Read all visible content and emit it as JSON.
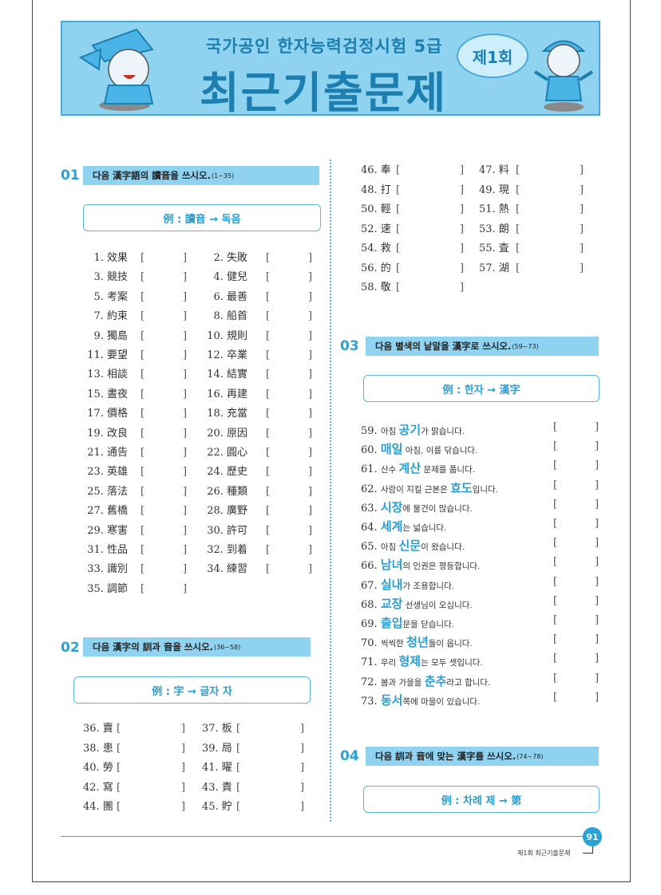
{
  "banner": {
    "subtitle": "국가공인 한자능력검정시험 5급",
    "title": "최근기출문제",
    "round": "제1회"
  },
  "colors": {
    "accent": "#2aa2d6",
    "bar": "#8fd3f1",
    "title": "#1c7fb0"
  },
  "sections": [
    {
      "num": "01",
      "instruction": "다음 漢字語의 讀音을 쓰시오.",
      "range": "(1~35)",
      "example": "例 : 讀音 → 독음"
    },
    {
      "num": "02",
      "instruction": "다음 漢字의 訓과 音을 쓰시오.",
      "range": "(36~58)",
      "example": "例 : 字 → 글자 자"
    },
    {
      "num": "03",
      "instruction": "다음 별색의 낱말을 漢字로 쓰시오.",
      "range": "(59~73)",
      "example": "例 : 한자 → 漢字"
    },
    {
      "num": "04",
      "instruction": "다음 訓과 音에 맞는 漢字를 쓰시오.",
      "range": "(74~78)",
      "example": "例 : 차례 제 → 第"
    }
  ],
  "q1": [
    "1. 效果",
    "2. 失敗",
    "3. 競技",
    "4. 健兒",
    "5. 考案",
    "6. 最善",
    "7. 約束",
    "8. 船首",
    "9. 獨島",
    "10. 規則",
    "11. 要望",
    "12. 卒業",
    "13. 相談",
    "14. 結實",
    "15. 晝夜",
    "16. 再建",
    "17. 價格",
    "18. 充當",
    "19. 改良",
    "20. 原因",
    "21. 通告",
    "22. 圓心",
    "23. 英雄",
    "24. 歷史",
    "25. 落法",
    "26. 種類",
    "27. 舊橋",
    "28. 廣野",
    "29. 寒害",
    "30. 許可",
    "31. 性品",
    "32. 到着",
    "33. 識別",
    "34. 練習",
    "35. 調節"
  ],
  "q2": [
    "36. 賣",
    "37. 板",
    "38. 患",
    "39. 局",
    "40. 勞",
    "41. 曜",
    "42. 寫",
    "43. 責",
    "44. 團",
    "45. 貯",
    "46. 奉",
    "47. 料",
    "48. 打",
    "49. 現",
    "50. 輕",
    "51. 熱",
    "52. 速",
    "53. 朗",
    "54. 救",
    "55. 査",
    "56. 的",
    "57. 湖",
    "58. 敬"
  ],
  "q3": [
    {
      "n": "59.",
      "pre": "아침 ",
      "word": "공기",
      "post": "가 맑습니다."
    },
    {
      "n": "60.",
      "pre": "",
      "word": "매일",
      "post": " 아침, 이를 닦습니다."
    },
    {
      "n": "61.",
      "pre": "산수 ",
      "word": "계산",
      "post": " 문제를 풉니다."
    },
    {
      "n": "62.",
      "pre": "사람이 지킬 근본은 ",
      "word": "효도",
      "post": "입니다."
    },
    {
      "n": "63.",
      "pre": "",
      "word": "시장",
      "post": "에 물건이 많습니다."
    },
    {
      "n": "64.",
      "pre": "",
      "word": "세계",
      "post": "는 넓습니다."
    },
    {
      "n": "65.",
      "pre": "아침 ",
      "word": "신문",
      "post": "이 왔습니다."
    },
    {
      "n": "66.",
      "pre": "",
      "word": "남녀",
      "post": "의 인권은 평등합니다."
    },
    {
      "n": "67.",
      "pre": "",
      "word": "실내",
      "post": "가 조용합니다."
    },
    {
      "n": "68.",
      "pre": "",
      "word": "교장",
      "post": " 선생님이 오십니다."
    },
    {
      "n": "69.",
      "pre": "",
      "word": "출입",
      "post": "문을 닫습니다."
    },
    {
      "n": "70.",
      "pre": "씩씩한 ",
      "word": "청년",
      "post": "들이 옵니다."
    },
    {
      "n": "71.",
      "pre": "우리 ",
      "word": "형제",
      "post": "는 모두 셋입니다."
    },
    {
      "n": "72.",
      "pre": "봄과 가을을 ",
      "word": "춘추",
      "post": "라고 합니다."
    },
    {
      "n": "73.",
      "pre": "",
      "word": "동서",
      "post": "쪽에 마을이 있습니다."
    }
  ],
  "bracket_open": "[",
  "bracket_close": "]",
  "footer": {
    "page": "91",
    "label": "제1회 최근기출문제"
  }
}
